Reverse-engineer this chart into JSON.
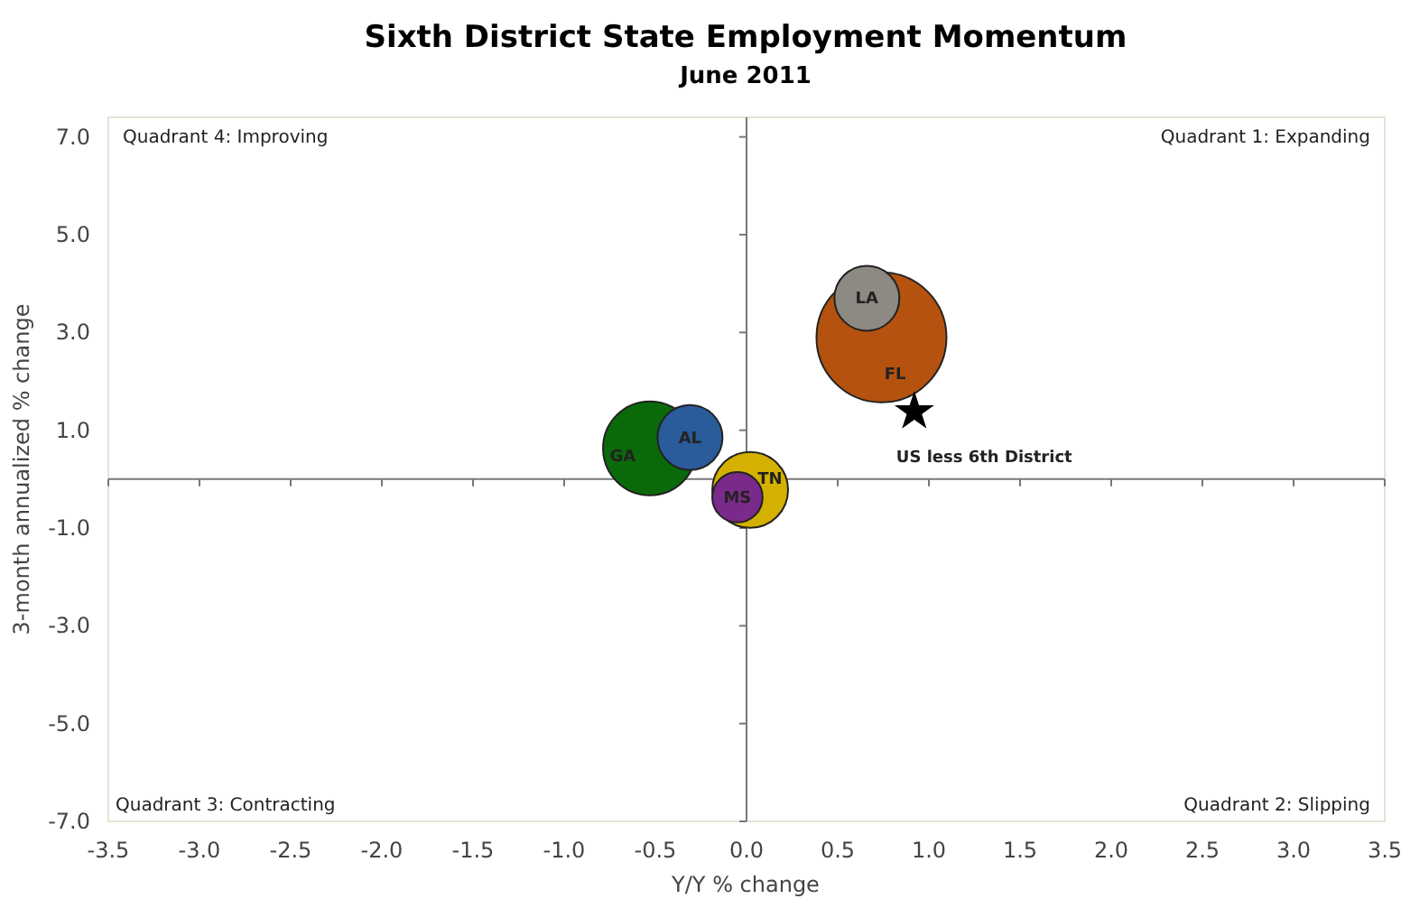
{
  "chart_data": {
    "type": "bubble",
    "title": "Sixth District State Employment Momentum",
    "subtitle": "June 2011",
    "xlabel": "Y/Y % change",
    "ylabel": "3-month annualized % change",
    "xlim": [
      -3.5,
      3.5
    ],
    "ylim": [
      -7,
      7.4
    ],
    "xticks": [
      {
        "value": -3.5,
        "label": "-3.5"
      },
      {
        "value": -3,
        "label": "-3.0"
      },
      {
        "value": -2.5,
        "label": "-2.5"
      },
      {
        "value": -2,
        "label": "-2.0"
      },
      {
        "value": -1.5,
        "label": "-1.5"
      },
      {
        "value": -1,
        "label": "-1.0"
      },
      {
        "value": -0.5,
        "label": "-0.5"
      },
      {
        "value": 0,
        "label": "0.0"
      },
      {
        "value": 0.5,
        "label": "0.5"
      },
      {
        "value": 1,
        "label": "1.0"
      },
      {
        "value": 1.5,
        "label": "1.5"
      },
      {
        "value": 2,
        "label": "2.0"
      },
      {
        "value": 2.5,
        "label": "2.5"
      },
      {
        "value": 3,
        "label": "3.0"
      },
      {
        "value": 3.5,
        "label": "3.5"
      }
    ],
    "yticks": [
      {
        "value": -7,
        "label": "-7.0"
      },
      {
        "value": -5,
        "label": "-5.0"
      },
      {
        "value": -3,
        "label": "-3.0"
      },
      {
        "value": -1,
        "label": "-1.0"
      },
      {
        "value": 1,
        "label": "1.0"
      },
      {
        "value": 3,
        "label": "3.0"
      },
      {
        "value": 5,
        "label": "5.0"
      },
      {
        "value": 7,
        "label": "7.0"
      }
    ],
    "legend": false,
    "series": [
      {
        "name": "FL",
        "color": "#b5520f",
        "x": [
          0.74
        ],
        "values": [
          2.9
        ],
        "sizes": [
          1
        ]
      },
      {
        "name": "LA",
        "color": "#8c8a82",
        "x": [
          0.66
        ],
        "values": [
          3.7
        ],
        "sizes": [
          0.25
        ]
      },
      {
        "name": "GA",
        "color": "#0a6a0a",
        "x": [
          -0.53
        ],
        "values": [
          0.63
        ],
        "sizes": [
          0.52
        ]
      },
      {
        "name": "AL",
        "color": "#2a5b9a",
        "x": [
          -0.31
        ],
        "values": [
          0.85
        ],
        "sizes": [
          0.25
        ]
      },
      {
        "name": "TN",
        "color": "#d4b000",
        "x": [
          0.02
        ],
        "values": [
          -0.22
        ],
        "sizes": [
          0.34
        ]
      },
      {
        "name": "MS",
        "color": "#7a2a8a",
        "x": [
          -0.05
        ],
        "values": [
          -0.37
        ],
        "sizes": [
          0.15
        ]
      },
      {
        "name": "US less 6th District",
        "type": "scatter",
        "marker": "star",
        "color": "#000000",
        "x": [
          0.92
        ],
        "values": [
          1.38
        ]
      }
    ],
    "annotations": [
      "Quadrant 4: Improving",
      "Quadrant 1: Expanding",
      "Quadrant 3: Contracting",
      "Quadrant 2: Slipping"
    ]
  }
}
